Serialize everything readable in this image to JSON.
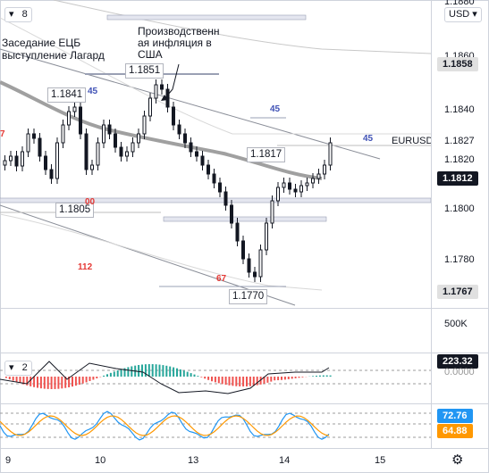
{
  "legend_main": {
    "collapse": "▾",
    "count": "8"
  },
  "legend_osc": {
    "collapse": "▾",
    "count": "2"
  },
  "currency": {
    "label": "USD",
    "icon": "chevron-down-icon"
  },
  "symbol": "EURUSD",
  "price_axis": {
    "ticks": [
      "1.1860",
      "1.1840",
      "1.1820",
      "1.1800",
      "1.1780"
    ]
  },
  "price_badges": {
    "upper": "1.1858",
    "pre": "1.1827",
    "last": "1.1812",
    "lower": "1.1767"
  },
  "volume_axis": "500K",
  "osc_axis": {
    "label": "0.0000",
    "value": "223.32"
  },
  "stoch_axis": {
    "k": "72.76",
    "d": "64.88"
  },
  "x_axis": [
    "9",
    "10",
    "13",
    "14",
    "15"
  ],
  "annotations": {
    "ecb": "Заседание ЕЦБ\nвыступление Лагард",
    "us_inflation": "Производственн\nая инфляция в\nСША",
    "high_1": "1.1851",
    "high_2": "1.1841",
    "low_1": "1.1805",
    "mid_1": "1.1817",
    "low_2": "1.1770"
  },
  "levels": {
    "n45a": "45",
    "n45b": "45",
    "n45c": "45",
    "n7": "7",
    "n00": "00",
    "n112": "112",
    "n67": "67"
  },
  "colors": {
    "accent": "#2962ff",
    "up": "#089981",
    "down": "#f23645",
    "ma": "#9a9a9a",
    "stochK": "#2196f3",
    "stochD": "#ff9800"
  },
  "settings_icon": "gear-icon"
}
